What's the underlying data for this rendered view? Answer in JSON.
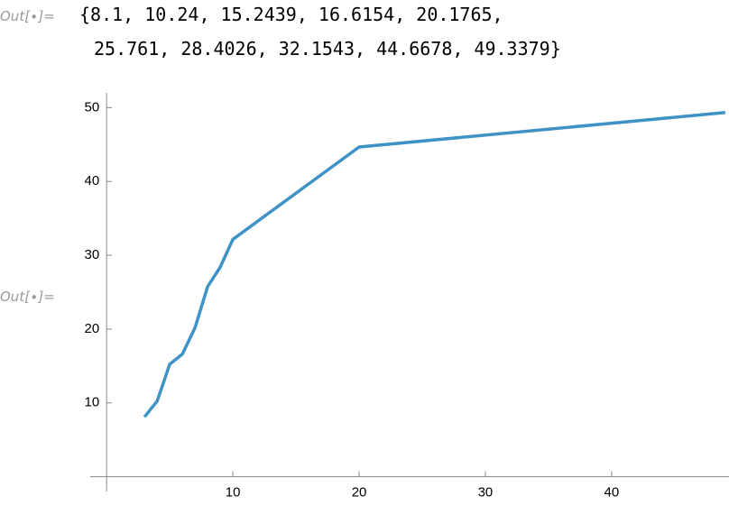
{
  "output_list": {
    "label": "Out[∙]=",
    "lines": [
      "{8.1, 10.24, 15.2439, 16.6154, 20.1765,",
      "25.761, 28.4026, 32.1543, 44.6678, 49.3379}"
    ]
  },
  "plot_label": "Out[∙]=",
  "chart_data": {
    "type": "line",
    "x": [
      3,
      4,
      5,
      6,
      7,
      8,
      9,
      10,
      20,
      49
    ],
    "series": [
      {
        "color": "#3f92c6",
        "values": [
          8.1,
          10.24,
          15.2439,
          16.6154,
          20.1765,
          25.761,
          28.4026,
          32.1543,
          44.6678,
          49.3379
        ]
      }
    ],
    "xlim": [
      -1.3,
      49.3
    ],
    "ylim": [
      -2,
      52
    ],
    "xticks": [
      10,
      20,
      30,
      40
    ],
    "yticks": [
      10,
      20,
      30,
      40,
      50
    ]
  }
}
